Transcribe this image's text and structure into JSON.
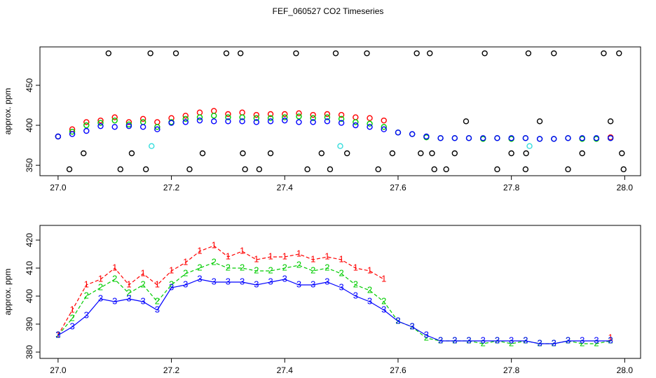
{
  "title": "FEF_060527  CO2 Timeseries",
  "chart_data": [
    {
      "type": "scatter",
      "ylabel": "approx. ppm",
      "xlim": [
        26.968,
        28.028
      ],
      "ylim": [
        337,
        498
      ],
      "xticks": [
        {
          "value": 27.0,
          "label": "27.0"
        },
        {
          "value": 27.2,
          "label": "27.2"
        },
        {
          "value": 27.4,
          "label": "27.4"
        },
        {
          "value": 27.6,
          "label": "27.6"
        },
        {
          "value": 27.8,
          "label": "27.8"
        },
        {
          "value": 28.0,
          "label": "28.0"
        }
      ],
      "yticks": [
        350,
        400,
        450
      ],
      "marker": "circle",
      "x": [
        27,
        27.025,
        27.05,
        27.075,
        27.1,
        27.125,
        27.15,
        27.175,
        27.2,
        27.225,
        27.25,
        27.275,
        27.3,
        27.325,
        27.35,
        27.375,
        27.4,
        27.425,
        27.45,
        27.475,
        27.5,
        27.525,
        27.55,
        27.575,
        27.6,
        27.625,
        27.65,
        27.675,
        27.7,
        27.725,
        27.75,
        27.775,
        27.8,
        27.825,
        27.85,
        27.875,
        27.9,
        27.925,
        27.95,
        27.975
      ],
      "series": [
        {
          "color": "#ff0000",
          "values": [
            386,
            395,
            404,
            406,
            410,
            404,
            408,
            404,
            409,
            412,
            416,
            418,
            414,
            416,
            413,
            414,
            414,
            415,
            413,
            414,
            413,
            410,
            409,
            406,
            null,
            null,
            null,
            null,
            null,
            null,
            null,
            null,
            null,
            null,
            null,
            null,
            null,
            null,
            null,
            385
          ]
        },
        {
          "color": "#00cc00",
          "values": [
            386,
            392,
            400,
            403,
            406,
            401,
            404,
            398,
            404,
            408,
            410,
            412,
            410,
            410,
            409,
            409,
            410,
            411,
            409,
            410,
            408,
            404,
            402,
            398,
            391,
            389,
            385,
            384,
            384,
            384,
            383,
            384,
            383,
            384,
            383,
            383,
            384,
            383,
            383,
            384
          ]
        },
        {
          "color": "#0000ff",
          "values": [
            386,
            389,
            393,
            399,
            398,
            399,
            398,
            395,
            403,
            404,
            406,
            405,
            405,
            405,
            404,
            405,
            406,
            404,
            404,
            405,
            403,
            400,
            398,
            395,
            391,
            389,
            386,
            384,
            384,
            384,
            384,
            384,
            384,
            384,
            383,
            383,
            384,
            384,
            384,
            384
          ]
        },
        {
          "color": "#000000",
          "x": [
            27.02,
            27.045,
            27.089,
            27.11,
            27.13,
            27.155,
            27.163,
            27.208,
            27.232,
            27.255,
            27.297,
            27.322,
            27.326,
            27.33,
            27.355,
            27.375,
            27.42,
            27.44,
            27.465,
            27.48,
            27.49,
            27.51,
            27.545,
            27.565,
            27.59,
            27.633,
            27.64,
            27.656,
            27.66,
            27.664,
            27.685,
            27.7,
            27.72,
            27.753,
            27.775,
            27.8,
            27.825,
            27.826,
            27.83,
            27.85,
            27.875,
            27.9,
            27.925,
            27.963,
            27.975,
            27.99,
            27.995,
            27.998
          ],
          "values": [
            345,
            365,
            490,
            345,
            365,
            345,
            490,
            490,
            345,
            365,
            490,
            490,
            365,
            345,
            345,
            365,
            490,
            345,
            365,
            345,
            490,
            365,
            490,
            345,
            365,
            490,
            365,
            490,
            365,
            345,
            345,
            365,
            405,
            490,
            345,
            365,
            345,
            365,
            490,
            405,
            490,
            345,
            365,
            490,
            405,
            490,
            365,
            345
          ]
        },
        {
          "color": "#33dddd",
          "x": [
            27.165,
            27.498,
            27.832
          ],
          "values": [
            374,
            374,
            374
          ]
        }
      ]
    },
    {
      "type": "line",
      "ylabel": "approx. ppm",
      "xlim": [
        26.968,
        28.028
      ],
      "ylim": [
        377.75,
        425.25
      ],
      "xticks": [
        {
          "value": 27.0,
          "label": "27.0"
        },
        {
          "value": 27.2,
          "label": "27.2"
        },
        {
          "value": 27.4,
          "label": "27.4"
        },
        {
          "value": 27.6,
          "label": "27.6"
        },
        {
          "value": 27.8,
          "label": "27.8"
        },
        {
          "value": 28.0,
          "label": "28.0"
        }
      ],
      "yticks": [
        380,
        390,
        400,
        410,
        420
      ],
      "marker": "text",
      "x": [
        27,
        27.025,
        27.05,
        27.075,
        27.1,
        27.125,
        27.15,
        27.175,
        27.2,
        27.225,
        27.25,
        27.275,
        27.3,
        27.325,
        27.35,
        27.375,
        27.4,
        27.425,
        27.45,
        27.475,
        27.5,
        27.525,
        27.55,
        27.575,
        27.6,
        27.625,
        27.65,
        27.675,
        27.7,
        27.725,
        27.75,
        27.775,
        27.8,
        27.825,
        27.85,
        27.875,
        27.9,
        27.925,
        27.95,
        27.975
      ],
      "series": [
        {
          "name": "1",
          "color": "#ff0000",
          "values": [
            386,
            395,
            404,
            406,
            410,
            404,
            408,
            404,
            409,
            412,
            416,
            418,
            414,
            416,
            413,
            414,
            414,
            415,
            413,
            414,
            413,
            410,
            409,
            406,
            null,
            null,
            null,
            null,
            null,
            null,
            null,
            null,
            null,
            null,
            null,
            null,
            null,
            null,
            null,
            385
          ]
        },
        {
          "name": "2",
          "color": "#00cc00",
          "values": [
            386,
            392,
            400,
            403,
            406,
            401,
            404,
            398,
            404,
            408,
            410,
            412,
            410,
            410,
            409,
            409,
            410,
            411,
            409,
            410,
            408,
            404,
            402,
            398,
            391,
            389,
            385,
            384,
            384,
            384,
            383,
            384,
            383,
            384,
            383,
            383,
            384,
            383,
            383,
            384
          ]
        },
        {
          "name": "3",
          "color": "#0000ff",
          "values": [
            386,
            389,
            393,
            399,
            398,
            399,
            398,
            395,
            403,
            404,
            406,
            405,
            405,
            405,
            404,
            405,
            406,
            404,
            404,
            405,
            403,
            400,
            398,
            395,
            391,
            389,
            386,
            384,
            384,
            384,
            384,
            384,
            384,
            384,
            383,
            383,
            384,
            384,
            384,
            384
          ]
        }
      ]
    }
  ]
}
